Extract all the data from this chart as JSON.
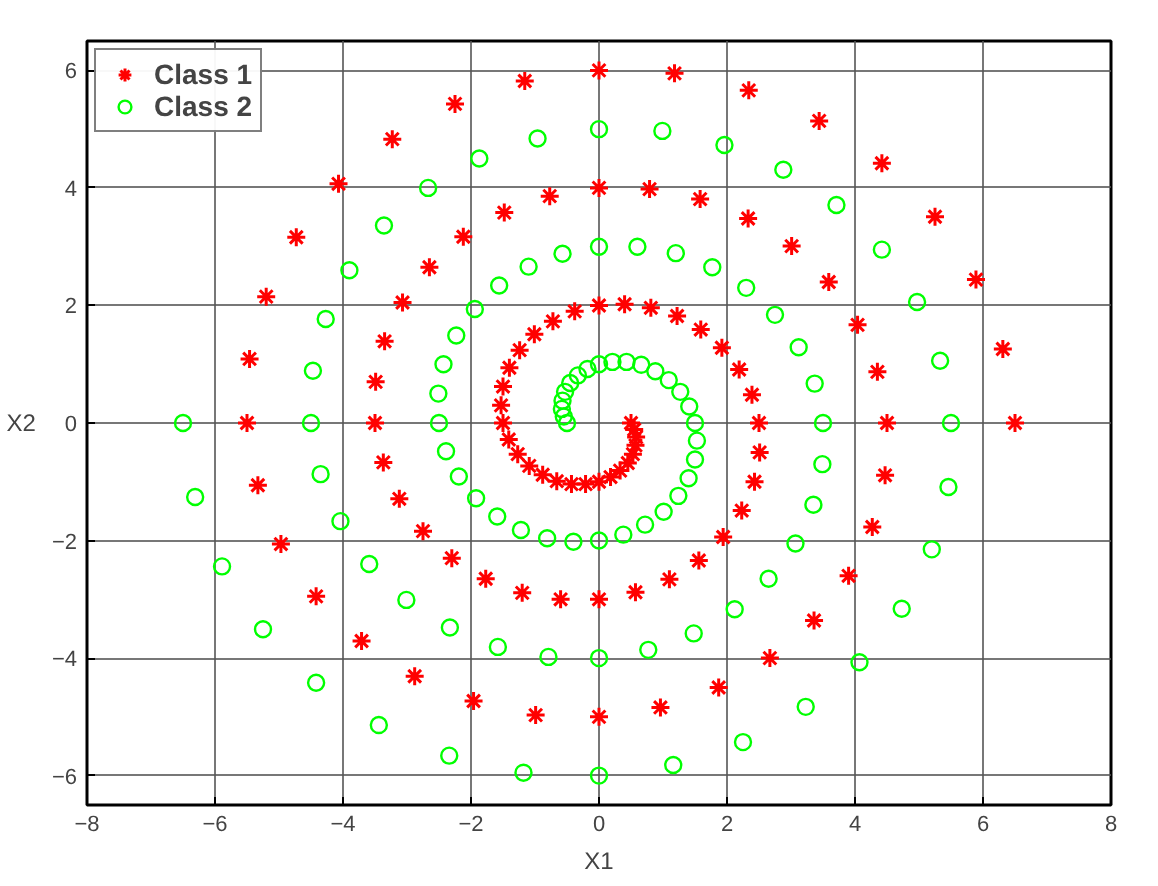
{
  "chart_data": {
    "type": "scatter",
    "xlabel": "X1",
    "ylabel": "X2",
    "xlim": [
      -8,
      8
    ],
    "ylim": [
      -6.5,
      6.5
    ],
    "xticks": [
      -8,
      -6,
      -4,
      -2,
      0,
      2,
      4,
      6,
      8
    ],
    "yticks": [
      -6,
      -4,
      -2,
      0,
      2,
      4,
      6
    ],
    "grid": true,
    "legend": "top left",
    "series": [
      {
        "name": "Class 1",
        "color": "#ff0000",
        "marker": "cross",
        "x": [
          6.5,
          6.31,
          5.89,
          5.25,
          4.42,
          3.44,
          2.34,
          1.18,
          0,
          -1.16,
          -2.25,
          -3.23,
          -4.07,
          -4.73,
          -5.2,
          -5.46,
          -5.5,
          -5.33,
          -4.97,
          -4.42,
          -3.71,
          -2.88,
          -1.96,
          -0.99,
          0,
          0.96,
          1.87,
          2.67,
          3.36,
          3.9,
          4.27,
          4.47,
          4.5,
          4.35,
          4.04,
          3.59,
          3.01,
          2.33,
          1.58,
          0.79,
          0,
          -0.77,
          -1.48,
          -2.12,
          -2.65,
          -3.07,
          -3.35,
          -3.49,
          -3.5,
          -3.37,
          -3.12,
          -2.75,
          -2.3,
          -1.77,
          -1.2,
          -0.6,
          0,
          0.57,
          1.1,
          1.56,
          1.94,
          2.23,
          2.43,
          2.51,
          2.5,
          2.39,
          2.19,
          1.92,
          1.59,
          1.22,
          0.81,
          0.4,
          0,
          -0.38,
          -0.72,
          -1.01,
          -1.24,
          -1.4,
          -1.5,
          -1.53,
          -1.5,
          -1.41,
          -1.27,
          -1.09,
          -0.88,
          -0.66,
          -0.43,
          -0.21,
          0,
          0.18,
          0.33,
          0.45,
          0.53,
          0.57,
          0.58,
          0.55,
          0.5
        ],
        "values": [
          0,
          1.26,
          2.44,
          3.51,
          4.42,
          5.14,
          5.66,
          5.95,
          6,
          5.82,
          5.43,
          4.83,
          4.07,
          3.16,
          2.15,
          1.09,
          0,
          -1.06,
          -2.06,
          -2.95,
          -3.71,
          -4.31,
          -4.73,
          -4.97,
          -5,
          -4.84,
          -4.5,
          -4,
          -3.36,
          -2.6,
          -1.77,
          -0.89,
          0,
          0.87,
          1.67,
          2.4,
          3.01,
          3.48,
          3.81,
          3.98,
          4,
          3.86,
          3.58,
          3.17,
          2.65,
          2.05,
          1.39,
          0.7,
          0,
          -0.67,
          -1.29,
          -1.84,
          -2.3,
          -2.65,
          -2.89,
          -3,
          -3,
          -2.88,
          -2.66,
          -2.34,
          -1.94,
          -1.49,
          -1,
          -0.5,
          0,
          0.48,
          0.91,
          1.28,
          1.59,
          1.82,
          1.96,
          2.02,
          2,
          1.9,
          1.73,
          1.51,
          1.24,
          0.94,
          0.62,
          0.3,
          0,
          -0.28,
          -0.53,
          -0.73,
          -0.88,
          -0.99,
          -1.04,
          -1.04,
          -1,
          -0.92,
          -0.81,
          -0.68,
          -0.53,
          -0.38,
          -0.24,
          -0.11,
          0
        ]
      },
      {
        "name": "Class 2",
        "color": "#00ff00",
        "marker": "circle",
        "x": [
          -6.5,
          -6.31,
          -5.89,
          -5.25,
          -4.42,
          -3.44,
          -2.34,
          -1.18,
          0,
          1.16,
          2.25,
          3.23,
          4.07,
          4.73,
          5.2,
          5.46,
          5.5,
          5.33,
          4.97,
          4.42,
          3.71,
          2.88,
          1.96,
          0.99,
          0,
          -0.96,
          -1.87,
          -2.67,
          -3.36,
          -3.9,
          -4.27,
          -4.47,
          -4.5,
          -4.35,
          -4.04,
          -3.59,
          -3.01,
          -2.33,
          -1.58,
          -0.79,
          0,
          0.77,
          1.48,
          2.12,
          2.65,
          3.07,
          3.35,
          3.49,
          3.5,
          3.37,
          3.12,
          2.75,
          2.3,
          1.77,
          1.2,
          0.6,
          0,
          -0.57,
          -1.1,
          -1.56,
          -1.94,
          -2.23,
          -2.43,
          -2.51,
          -2.5,
          -2.39,
          -2.19,
          -1.92,
          -1.59,
          -1.22,
          -0.81,
          -0.4,
          0,
          0.38,
          0.72,
          1.01,
          1.24,
          1.4,
          1.5,
          1.53,
          1.5,
          1.41,
          1.27,
          1.09,
          0.88,
          0.66,
          0.43,
          0.21,
          0,
          -0.18,
          -0.33,
          -0.45,
          -0.53,
          -0.57,
          -0.58,
          -0.55,
          -0.5
        ],
        "values": [
          0,
          -1.26,
          -2.44,
          -3.51,
          -4.42,
          -5.14,
          -5.66,
          -5.95,
          -6,
          -5.82,
          -5.43,
          -4.83,
          -4.07,
          -3.16,
          -2.15,
          -1.09,
          0,
          1.06,
          2.06,
          2.95,
          3.71,
          4.31,
          4.73,
          4.97,
          5,
          4.84,
          4.5,
          4,
          3.36,
          2.6,
          1.77,
          0.89,
          0,
          -0.87,
          -1.67,
          -2.4,
          -3.01,
          -3.48,
          -3.81,
          -3.98,
          -4,
          -3.86,
          -3.58,
          -3.17,
          -2.65,
          -2.05,
          -1.39,
          -0.7,
          0,
          0.67,
          1.29,
          1.84,
          2.3,
          2.65,
          2.89,
          3,
          3,
          2.88,
          2.66,
          2.34,
          1.94,
          1.49,
          1,
          0.5,
          0,
          -0.48,
          -0.91,
          -1.28,
          -1.59,
          -1.82,
          -1.96,
          -2.02,
          -2,
          -1.9,
          -1.73,
          -1.51,
          -1.24,
          -0.94,
          -0.62,
          -0.3,
          0,
          0.28,
          0.53,
          0.73,
          0.88,
          0.99,
          1.04,
          1.04,
          1,
          0.92,
          0.81,
          0.68,
          0.53,
          0.38,
          0.24,
          0.11,
          0
        ]
      }
    ]
  }
}
